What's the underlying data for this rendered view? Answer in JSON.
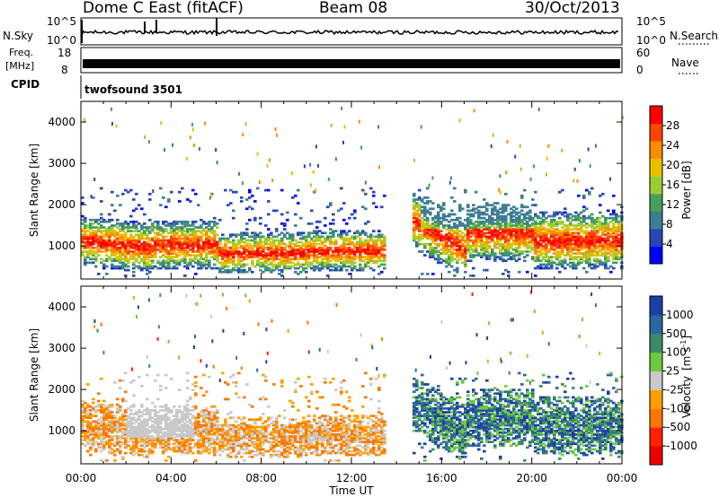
{
  "header": {
    "title": "Dome C East (fitACF)",
    "beam": "Beam 08",
    "date": "30/Oct/2013"
  },
  "panels": {
    "nsky": {
      "label": "N.Sky",
      "tick_hi": "10^5",
      "tick_lo": "10^0"
    },
    "nsearch": {
      "label": "N.Search",
      "tick_hi": "10^5",
      "tick_lo": "10^0"
    },
    "freq": {
      "label": "Freq.",
      "unit": "[MHz]",
      "tick_hi": "18",
      "tick_lo": "8"
    },
    "nave": {
      "label": "Nave",
      "tick_hi": "60",
      "tick_lo": "0"
    },
    "cpid": {
      "label": "CPID",
      "value": "twofsound 3501"
    }
  },
  "chart_data": [
    {
      "type": "heatmap",
      "name": "power",
      "ylabel": "Slant Range [km]",
      "xlabel": "Time UT",
      "x_ticks": [
        "00:00",
        "04:00",
        "08:00",
        "12:00",
        "16:00",
        "20:00",
        "00:00"
      ],
      "x_range_hours": [
        0,
        24
      ],
      "y_ticks": [
        1000,
        2000,
        3000,
        4000
      ],
      "ylim": [
        200,
        4500
      ],
      "colorbar": {
        "label": "Power [dB]",
        "ticks": [
          "4",
          "8",
          "12",
          "16",
          "20",
          "24",
          "28"
        ],
        "range": [
          0,
          32
        ],
        "colors": [
          "#0000ff",
          "#2747b8",
          "#3e7d93",
          "#47a05a",
          "#9ccc32",
          "#e8c000",
          "#ff8c00",
          "#ff4400",
          "#ff0000"
        ]
      }
    },
    {
      "type": "heatmap",
      "name": "velocity",
      "ylabel": "Slant Range [km]",
      "xlabel": "Time UT",
      "x_ticks": [
        "00:00",
        "04:00",
        "08:00",
        "12:00",
        "16:00",
        "20:00",
        "00:00"
      ],
      "x_range_hours": [
        0,
        24
      ],
      "y_ticks": [
        1000,
        2000,
        3000,
        4000
      ],
      "ylim": [
        200,
        4500
      ],
      "colorbar": {
        "label": "Velocity",
        "unit_base": "[m s",
        "unit_sup": "-1",
        "unit_end": "]",
        "ticks": [
          "1000",
          "500",
          "100",
          "25",
          "-25",
          "-100",
          "-500",
          "-1000"
        ],
        "colors": [
          "#1f3fa8",
          "#2d66a0",
          "#3d8a6a",
          "#6ec93f",
          "#c9c9c9",
          "#ffa000",
          "#ff7700",
          "#ff2200",
          "#ee0000"
        ]
      }
    }
  ],
  "colors": {
    "background": "#ffffff",
    "axis": "#000000"
  }
}
